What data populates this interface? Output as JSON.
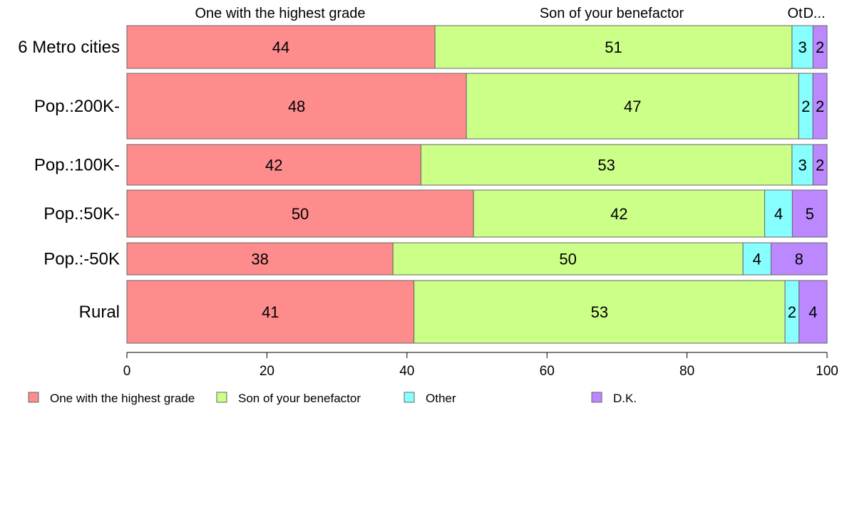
{
  "chart_data": {
    "type": "bar",
    "orientation": "horizontal",
    "stacked": true,
    "categories": [
      "6 Metro cities",
      "Pop.:200K-",
      "Pop.:100K-",
      "Pop.:50K-",
      "Pop.:-50K",
      "Rural"
    ],
    "series": [
      {
        "name": "One with the highest grade",
        "color": "#ff8c8c",
        "values": [
          44,
          48,
          42,
          50,
          38,
          41
        ]
      },
      {
        "name": "Son of your benefactor",
        "color": "#ccff88",
        "values": [
          51,
          47,
          53,
          42,
          50,
          53
        ]
      },
      {
        "name": "Other",
        "color": "#88ffff",
        "values": [
          3,
          2,
          3,
          4,
          4,
          2
        ]
      },
      {
        "name": "D.K.",
        "color": "#bb88ff",
        "values": [
          2,
          2,
          2,
          5,
          8,
          4
        ]
      }
    ],
    "column_headers": [
      "One with the highest grade",
      "Son of your benefactor",
      "Ot",
      "D..."
    ],
    "xlim": [
      0,
      100
    ],
    "xticks": [
      0,
      20,
      40,
      60,
      80,
      100
    ],
    "grid": false,
    "legend_position": "bottom"
  }
}
